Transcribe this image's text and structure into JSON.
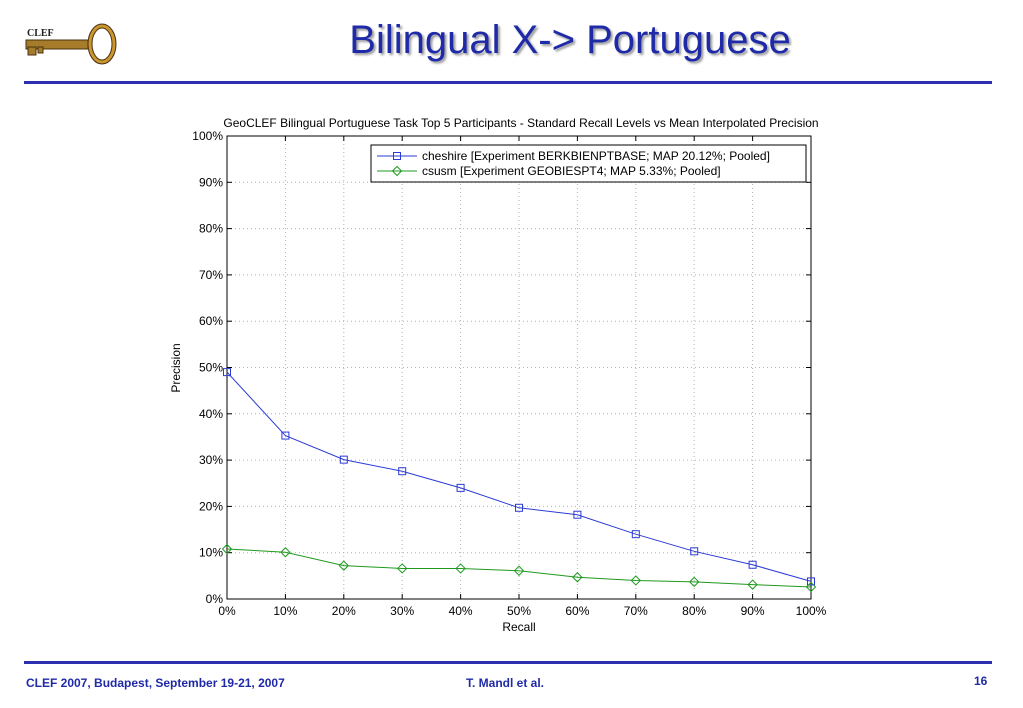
{
  "slide": {
    "title": "Bilingual X-> Portuguese",
    "logo_text": "CLEF",
    "footer_left": "CLEF 2007, Budapest, September 19-21, 2007",
    "footer_center": "T. Mandl et al.",
    "page_number": "16",
    "accent_color": "#1f2aa8"
  },
  "chart_data": {
    "type": "line",
    "title": "GeoCLEF Bilingual Portuguese Task Top 5 Participants -  Standard Recall Levels vs Mean Interpolated Precision",
    "xlabel": "Recall",
    "ylabel": "Precision",
    "x": [
      0,
      10,
      20,
      30,
      40,
      50,
      60,
      70,
      80,
      90,
      100
    ],
    "x_tick_labels": [
      "0%",
      "10%",
      "20%",
      "30%",
      "40%",
      "50%",
      "60%",
      "70%",
      "80%",
      "90%",
      "100%"
    ],
    "y_ticks": [
      0,
      10,
      20,
      30,
      40,
      50,
      60,
      70,
      80,
      90,
      100
    ],
    "y_tick_labels": [
      "0%",
      "10%",
      "20%",
      "30%",
      "40%",
      "50%",
      "60%",
      "70%",
      "80%",
      "90%",
      "100%"
    ],
    "xlim": [
      0,
      100
    ],
    "ylim": [
      0,
      100
    ],
    "grid": true,
    "legend_position": "top-right",
    "series": [
      {
        "name": "cheshire [Experiment BERKBIENPTBASE; MAP 20.12%; Pooled]",
        "color": "#2b3bd6",
        "marker": "square",
        "values": [
          49.0,
          35.3,
          30.1,
          27.6,
          24.0,
          19.7,
          18.2,
          14.0,
          10.3,
          7.4,
          3.8
        ]
      },
      {
        "name": "csusm [Experiment GEOBIESPT4; MAP 5.33%; Pooled]",
        "color": "#1f9a1f",
        "marker": "diamond",
        "values": [
          10.8,
          10.1,
          7.2,
          6.6,
          6.6,
          6.1,
          4.7,
          4.0,
          3.7,
          3.1,
          2.6
        ]
      }
    ]
  }
}
